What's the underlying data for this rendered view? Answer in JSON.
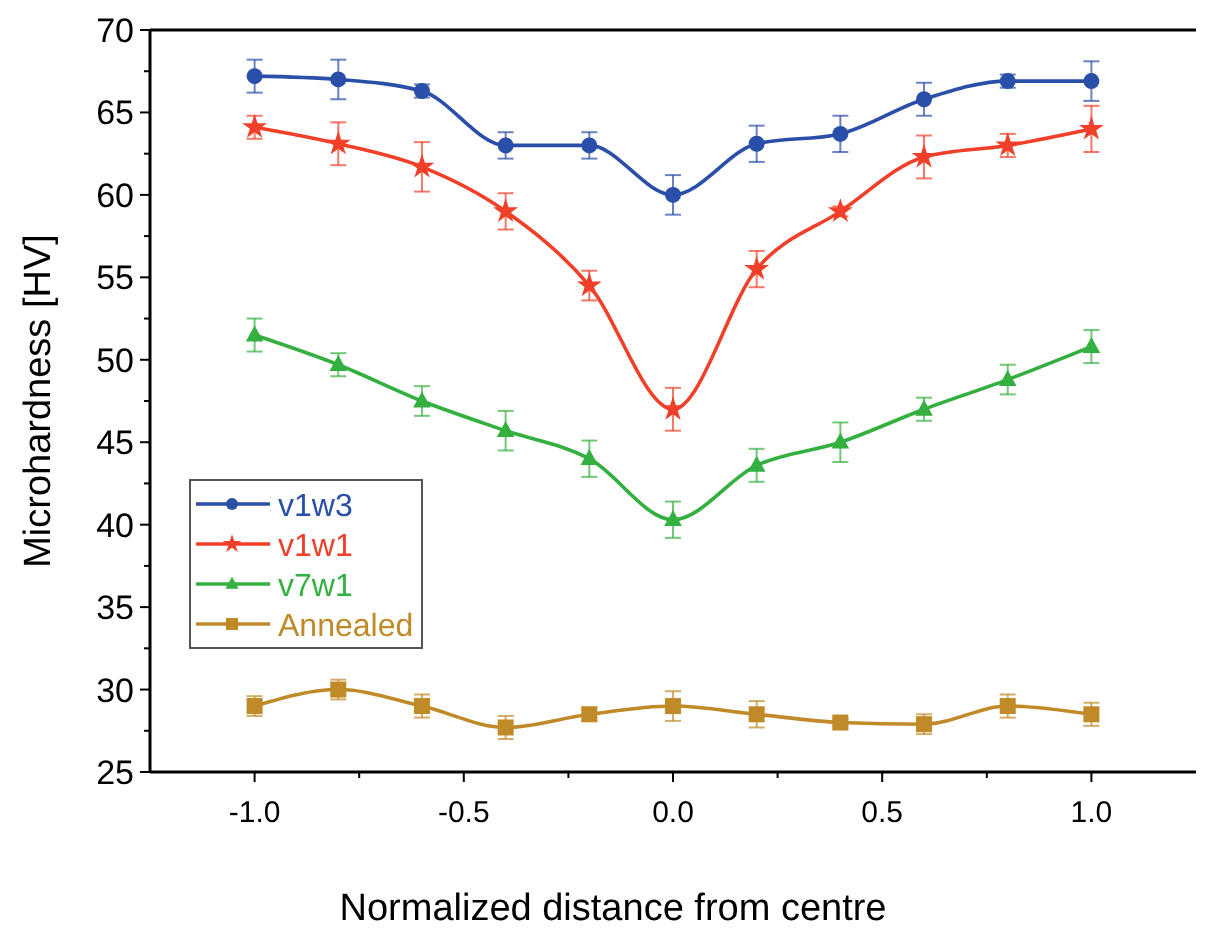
{
  "chart_data": {
    "type": "line",
    "xlabel": "Normalized distance from centre",
    "ylabel": "Microhardness [HV]",
    "x": [
      -1,
      -0.8,
      -0.6,
      -0.4,
      -0.2,
      0,
      0.2,
      0.4,
      0.6,
      0.8,
      1
    ],
    "xlim": [
      -1.25,
      1.25
    ],
    "xticks": [
      {
        "value": -1,
        "label": "-1.0"
      },
      {
        "value": -0.75,
        "label": null
      },
      {
        "value": -0.5,
        "label": "-0.5"
      },
      {
        "value": -0.25,
        "label": null
      },
      {
        "value": 0,
        "label": "0.0"
      },
      {
        "value": 0.25,
        "label": null
      },
      {
        "value": 0.5,
        "label": "0.5"
      },
      {
        "value": 0.75,
        "label": null
      },
      {
        "value": 1,
        "label": "1.0"
      }
    ],
    "ylim": [
      25,
      70
    ],
    "yticks": [
      25,
      {
        "value": 27.5,
        "label": null
      },
      30,
      {
        "value": 32.5,
        "label": null
      },
      35,
      {
        "value": 37.5,
        "label": null
      },
      40,
      {
        "value": 42.5,
        "label": null
      },
      45,
      {
        "value": 47.5,
        "label": null
      },
      50,
      {
        "value": 52.5,
        "label": null
      },
      55,
      {
        "value": 57.5,
        "label": null
      },
      60,
      {
        "value": 62.5,
        "label": null
      },
      65,
      {
        "value": 67.5,
        "label": null
      },
      70
    ],
    "legend": "left",
    "grid": false,
    "series": [
      {
        "name": "v1w3",
        "color": "#2a4fa8",
        "marker": "circle",
        "values": [
          67.2,
          67.0,
          66.3,
          63.0,
          63.0,
          60.0,
          63.1,
          63.7,
          65.8,
          66.9,
          66.9
        ],
        "errors": [
          1.0,
          1.2,
          0.4,
          0.8,
          0.8,
          1.2,
          1.1,
          1.1,
          1.0,
          0.4,
          1.2
        ]
      },
      {
        "name": "v1w1",
        "color": "#f0402a",
        "marker": "star",
        "values": [
          64.1,
          63.1,
          61.7,
          59.0,
          54.5,
          47.0,
          55.5,
          59.0,
          62.3,
          63.0,
          64.0
        ],
        "errors": [
          0.7,
          1.3,
          1.5,
          1.1,
          0.9,
          1.3,
          1.1,
          0.3,
          1.3,
          0.7,
          1.4
        ]
      },
      {
        "name": "v7w1",
        "color": "#33b040",
        "marker": "triangle",
        "values": [
          51.5,
          49.7,
          47.5,
          45.7,
          44.0,
          40.3,
          43.6,
          45.0,
          47.0,
          48.8,
          50.8
        ],
        "errors": [
          1.0,
          0.7,
          0.9,
          1.2,
          1.1,
          1.1,
          1.0,
          1.2,
          0.7,
          0.9,
          1.0
        ]
      },
      {
        "name": "Annealed",
        "color": "#c08a28",
        "marker": "square",
        "values": [
          29.0,
          30.0,
          29.0,
          27.7,
          28.5,
          29.0,
          28.5,
          28.0,
          27.9,
          29.0,
          28.5
        ],
        "errors": [
          0.6,
          0.6,
          0.7,
          0.7,
          0.4,
          0.9,
          0.8,
          0.2,
          0.6,
          0.7,
          0.7
        ]
      }
    ]
  }
}
